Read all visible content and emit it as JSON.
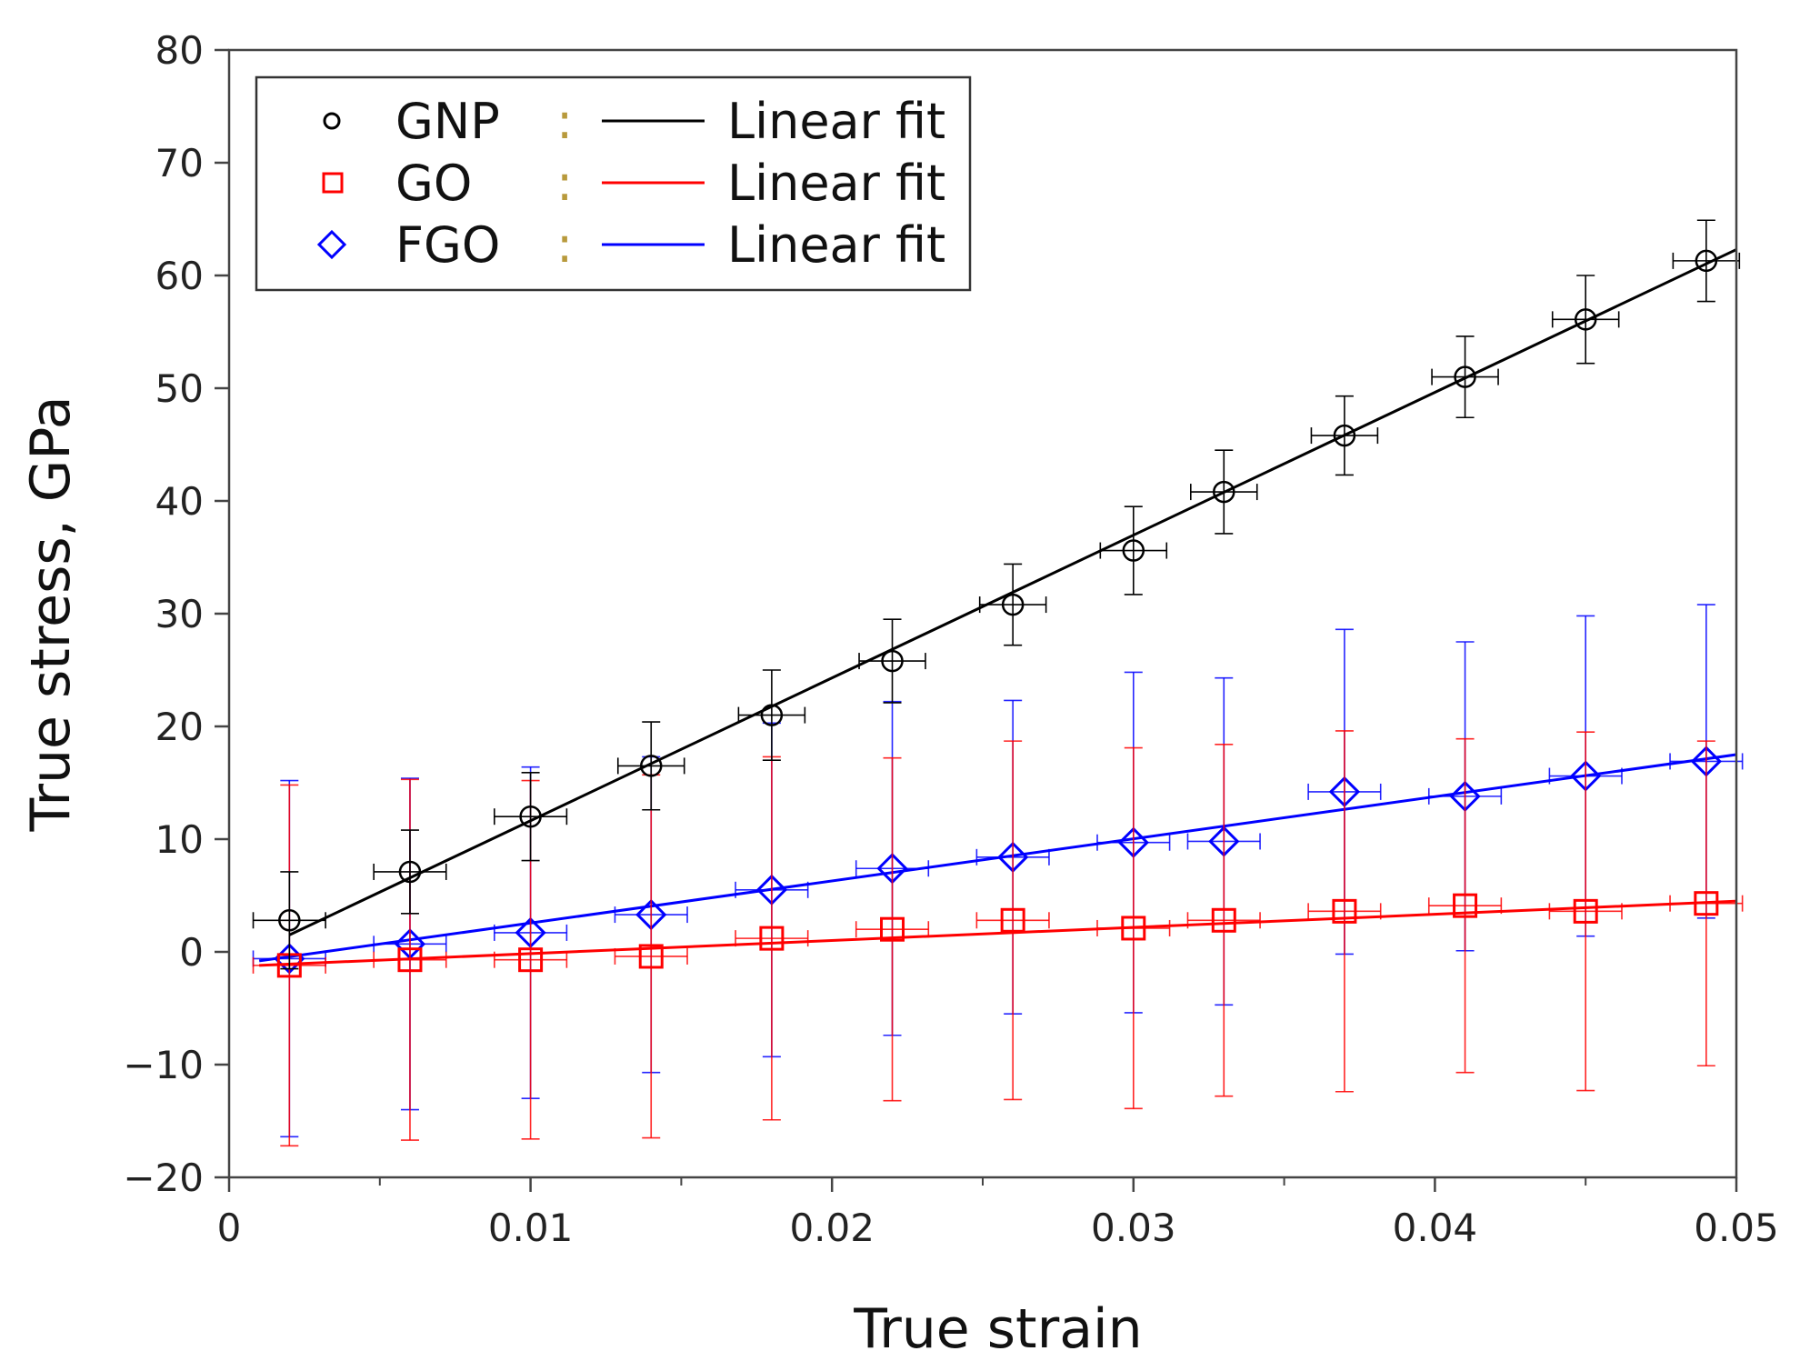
{
  "chart_data": {
    "type": "scatter",
    "xlabel": "True strain",
    "ylabel": "True stress, GPa",
    "xlim": [
      0,
      0.05
    ],
    "ylim": [
      -20,
      80
    ],
    "x_ticks": [
      0,
      0.01,
      0.02,
      0.03,
      0.04,
      0.05
    ],
    "x_tick_labels": [
      "0",
      "0.01",
      "0.02",
      "0.03",
      "0.04",
      "0.05"
    ],
    "y_ticks": [
      -20,
      -10,
      0,
      10,
      20,
      30,
      40,
      50,
      60,
      70,
      80
    ],
    "y_tick_labels": [
      "−20",
      "−10",
      "0",
      "10",
      "20",
      "30",
      "40",
      "50",
      "60",
      "70",
      "80"
    ],
    "legend_position": "top-left",
    "legend_separator": ":",
    "grid": false,
    "series": [
      {
        "name": "GNP",
        "fit_label": "Linear fit",
        "color": "#000000",
        "marker": "circle",
        "x": [
          0.002,
          0.006,
          0.01,
          0.014,
          0.018,
          0.022,
          0.026,
          0.03,
          0.033,
          0.037,
          0.041,
          0.045,
          0.049
        ],
        "y": [
          2.8,
          7.1,
          12.0,
          16.5,
          21.0,
          25.8,
          30.8,
          35.6,
          40.8,
          45.8,
          51.0,
          56.1,
          61.3
        ],
        "y_err": [
          4.3,
          3.7,
          3.9,
          3.9,
          4.0,
          3.7,
          3.6,
          3.9,
          3.7,
          3.5,
          3.6,
          3.9,
          3.6
        ],
        "x_err": [
          0.0012,
          0.0012,
          0.0012,
          0.0011,
          0.0011,
          0.0011,
          0.0011,
          0.0011,
          0.0011,
          0.0011,
          0.0011,
          0.0011,
          0.0011
        ],
        "fit": {
          "x": [
            0.002,
            0.05
          ],
          "y": [
            1.5,
            62.3
          ]
        }
      },
      {
        "name": "GO",
        "fit_label": "Linear fit",
        "color": "#ff0000",
        "marker": "square",
        "x": [
          0.002,
          0.006,
          0.01,
          0.014,
          0.018,
          0.022,
          0.026,
          0.03,
          0.033,
          0.037,
          0.041,
          0.045,
          0.049
        ],
        "y": [
          -1.2,
          -0.7,
          -0.7,
          -0.4,
          1.2,
          2.0,
          2.8,
          2.1,
          2.8,
          3.6,
          4.1,
          3.6,
          4.3
        ],
        "y_err": [
          16.0,
          16.0,
          15.9,
          16.1,
          16.1,
          15.2,
          15.9,
          16.0,
          15.6,
          16.0,
          14.8,
          15.9,
          14.4
        ],
        "x_err": [
          0.0012,
          0.0012,
          0.0012,
          0.0012,
          0.0012,
          0.0012,
          0.0012,
          0.0012,
          0.0012,
          0.0012,
          0.0012,
          0.0012,
          0.0012
        ],
        "fit": {
          "x": [
            0.001,
            0.05
          ],
          "y": [
            -1.2,
            4.5
          ]
        }
      },
      {
        "name": "FGO",
        "fit_label": "Linear fit",
        "color": "#0000ff",
        "marker": "diamond",
        "x": [
          0.002,
          0.006,
          0.01,
          0.014,
          0.018,
          0.022,
          0.026,
          0.03,
          0.033,
          0.037,
          0.041,
          0.045,
          0.049
        ],
        "y": [
          -0.6,
          0.7,
          1.7,
          3.3,
          5.5,
          7.4,
          8.4,
          9.7,
          9.8,
          14.2,
          13.8,
          15.6,
          16.9
        ],
        "y_err": [
          15.8,
          14.7,
          14.7,
          14.0,
          14.8,
          14.8,
          13.9,
          15.1,
          14.5,
          14.4,
          13.7,
          14.2,
          13.9
        ],
        "x_err": [
          0.0012,
          0.0012,
          0.0012,
          0.0012,
          0.0012,
          0.0012,
          0.0012,
          0.0012,
          0.0012,
          0.0012,
          0.0012,
          0.0012,
          0.0012
        ],
        "fit": {
          "x": [
            0.001,
            0.05
          ],
          "y": [
            -0.8,
            17.5
          ]
        }
      }
    ]
  }
}
